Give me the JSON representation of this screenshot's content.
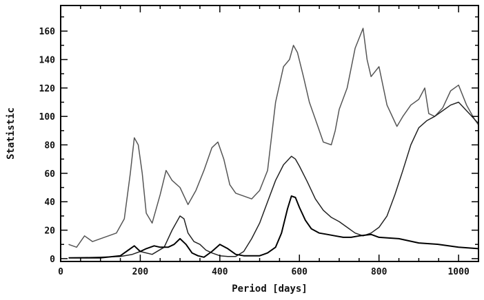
{
  "chart_data": {
    "type": "line",
    "title": "",
    "xlabel": "Period [days]",
    "ylabel": "Statistic",
    "xlim": [
      0,
      1050
    ],
    "ylim": [
      -2,
      178
    ],
    "x_ticks": [
      0,
      200,
      400,
      600,
      800,
      1000
    ],
    "y_ticks": [
      0,
      20,
      40,
      60,
      80,
      100,
      120,
      140,
      160
    ],
    "grid": false,
    "series": [
      {
        "color": "#555555",
        "x": [
          20,
          40,
          60,
          80,
          100,
          120,
          140,
          160,
          175,
          185,
          195,
          205,
          215,
          230,
          250,
          265,
          280,
          300,
          320,
          340,
          360,
          380,
          395,
          410,
          425,
          440,
          460,
          480,
          500,
          520,
          540,
          560,
          575,
          585,
          595,
          610,
          625,
          640,
          660,
          680,
          690,
          700,
          720,
          740,
          760,
          770,
          780,
          800,
          820,
          840,
          845,
          860,
          880,
          900,
          915,
          925,
          940,
          960,
          980,
          1000,
          1020,
          1040,
          1050
        ],
        "y": [
          10,
          8,
          16,
          12,
          14,
          16,
          18,
          28,
          60,
          85,
          80,
          60,
          32,
          25,
          45,
          62,
          55,
          50,
          38,
          48,
          62,
          78,
          82,
          70,
          52,
          46,
          44,
          42,
          48,
          62,
          110,
          135,
          140,
          150,
          145,
          128,
          110,
          98,
          82,
          80,
          90,
          105,
          120,
          148,
          162,
          140,
          128,
          135,
          108,
          96,
          93,
          100,
          108,
          112,
          120,
          102,
          100,
          106,
          118,
          122,
          108,
          98,
          94
        ]
      },
      {
        "color": "#222222",
        "x": [
          20,
          100,
          150,
          180,
          200,
          230,
          260,
          280,
          300,
          310,
          320,
          335,
          350,
          365,
          380,
          400,
          420,
          440,
          460,
          480,
          500,
          520,
          540,
          560,
          580,
          590,
          600,
          620,
          640,
          660,
          680,
          700,
          720,
          740,
          760,
          780,
          800,
          820,
          840,
          860,
          880,
          900,
          920,
          940,
          960,
          980,
          1000,
          1020,
          1040,
          1050
        ],
        "y": [
          0.5,
          1,
          1.5,
          3,
          5,
          3,
          8,
          20,
          30,
          28,
          18,
          12,
          10,
          6,
          4,
          2,
          1.5,
          1.5,
          5,
          14,
          25,
          40,
          55,
          66,
          72,
          70,
          65,
          54,
          42,
          34,
          29,
          26,
          22,
          18,
          16,
          18,
          22,
          30,
          45,
          62,
          80,
          92,
          97,
          100,
          104,
          108,
          110,
          104,
          98,
          95
        ]
      },
      {
        "color": "#000000",
        "x": [
          20,
          100,
          150,
          170,
          185,
          200,
          215,
          235,
          250,
          270,
          285,
          300,
          315,
          330,
          345,
          360,
          380,
          400,
          420,
          440,
          460,
          480,
          500,
          520,
          540,
          555,
          570,
          580,
          590,
          600,
          615,
          630,
          650,
          670,
          690,
          710,
          730,
          750,
          780,
          800,
          850,
          900,
          950,
          1000,
          1050
        ],
        "y": [
          0.5,
          0.5,
          2,
          6,
          9,
          5,
          7,
          9,
          8,
          8,
          10,
          14,
          10,
          4,
          2,
          1,
          5,
          10,
          7,
          3,
          2,
          2,
          2,
          4,
          8,
          18,
          35,
          44,
          43,
          36,
          27,
          21,
          18,
          17,
          16,
          15,
          15,
          16,
          17,
          15,
          14,
          11,
          10,
          8,
          7
        ]
      }
    ]
  }
}
